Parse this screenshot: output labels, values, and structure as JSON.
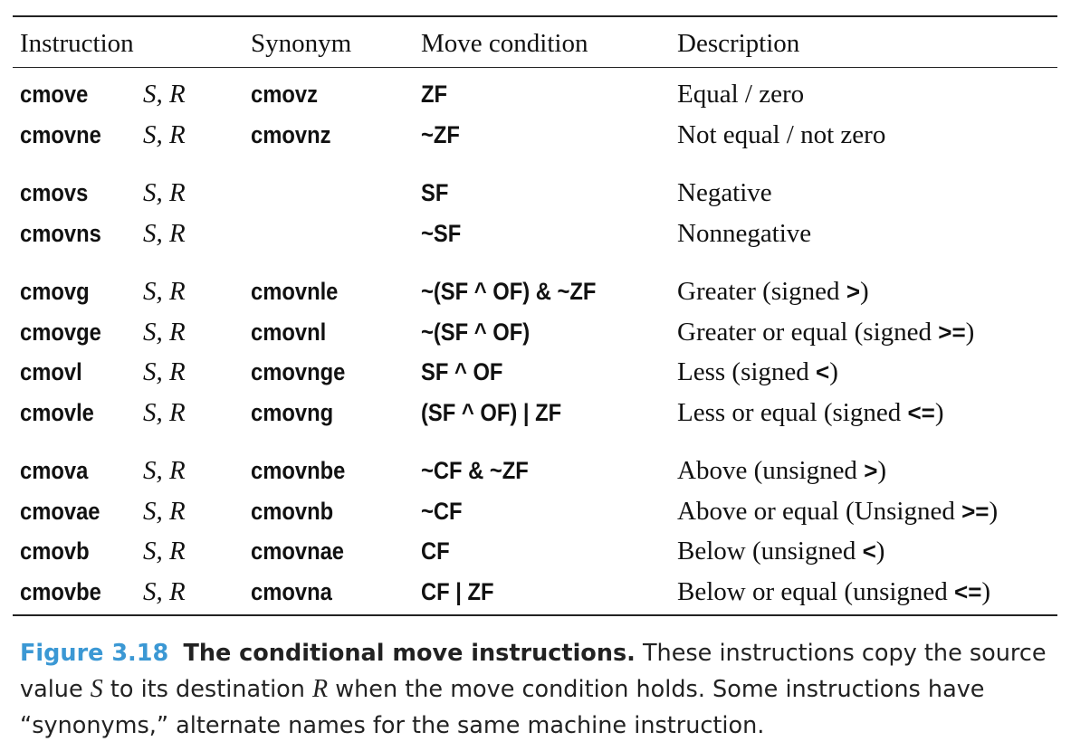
{
  "table": {
    "header": [
      "Instruction",
      "Synonym",
      "Move condition",
      "Description"
    ],
    "groups": [
      [
        {
          "instruction": "cmove",
          "operands": "S, R",
          "synonym": "cmovz",
          "condition": "ZF",
          "description": "Equal / zero"
        },
        {
          "instruction": "cmovne",
          "operands": "S, R",
          "synonym": "cmovnz",
          "condition": "~ZF",
          "description": "Not equal / not zero"
        }
      ],
      [
        {
          "instruction": "cmovs",
          "operands": "S, R",
          "condition": "SF",
          "description": "Negative"
        },
        {
          "instruction": "cmovns",
          "operands": "S, R",
          "condition": "~SF",
          "description": "Nonnegative"
        }
      ],
      [
        {
          "instruction": "cmovg",
          "operands": "S, R",
          "synonym": "cmovnle",
          "condition": "~(SF ^ OF) & ~ZF",
          "description": {
            "text": "Greater (signed ",
            "operator": ">",
            "close": ")"
          }
        },
        {
          "instruction": "cmovge",
          "operands": "S, R",
          "synonym": "cmovnl",
          "condition": "~(SF ^ OF)",
          "description": {
            "text": "Greater or equal (signed ",
            "operator": ">=",
            "close": ")"
          }
        },
        {
          "instruction": "cmovl",
          "operands": "S, R",
          "synonym": "cmovnge",
          "condition": "SF ^ OF",
          "description": {
            "text": "Less (signed ",
            "operator": "<",
            "close": ")"
          }
        },
        {
          "instruction": "cmovle",
          "operands": "S, R",
          "synonym": "cmovng",
          "condition": "(SF ^ OF) | ZF",
          "description": {
            "text": "Less or equal (signed ",
            "operator": "<=",
            "close": ")"
          }
        }
      ],
      [
        {
          "instruction": "cmova",
          "operands": "S, R",
          "synonym": "cmovnbe",
          "condition": "~CF & ~ZF",
          "description": {
            "text": "Above (unsigned ",
            "operator": ">",
            "close": ")"
          }
        },
        {
          "instruction": "cmovae",
          "operands": "S, R",
          "synonym": "cmovnb",
          "condition": "~CF",
          "description": {
            "text": "Above or equal (Unsigned ",
            "operator": ">=",
            "close": ")"
          }
        },
        {
          "instruction": "cmovb",
          "operands": "S, R",
          "synonym": "cmovnae",
          "condition": "CF",
          "description": {
            "text": "Below (unsigned ",
            "operator": "<",
            "close": ")"
          }
        },
        {
          "instruction": "cmovbe",
          "operands": "S, R",
          "synonym": "cmovna",
          "condition": "CF | ZF",
          "description": {
            "text": "Below or equal (unsigned ",
            "operator": "<=",
            "close": ")"
          }
        }
      ]
    ]
  },
  "caption": {
    "label": "Figure 3.18",
    "title": "The conditional move instructions.",
    "text": [
      " These instructions copy the source value ",
      "S",
      " to its destination ",
      "R",
      " when the move condition holds. Some instructions have “synonyms,” alternate names for the same machine instruction."
    ]
  }
}
